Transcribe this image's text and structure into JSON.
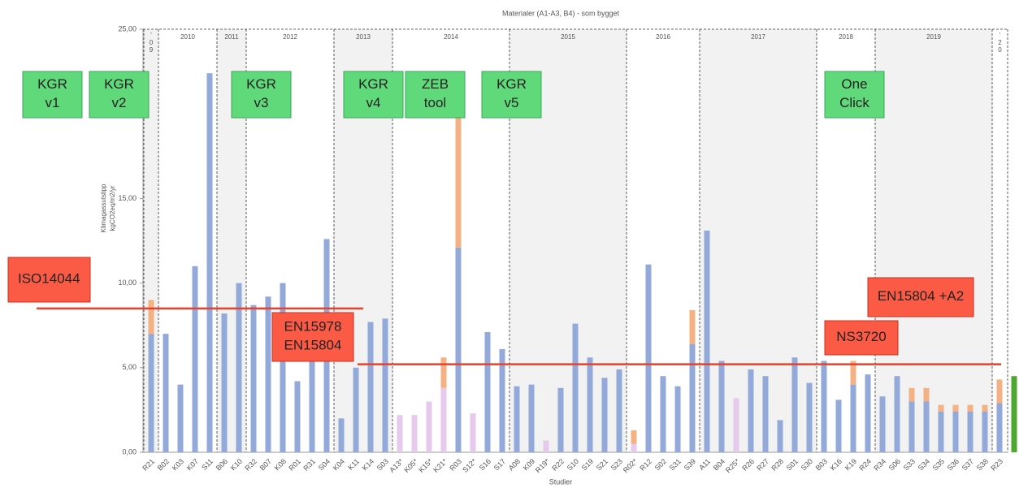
{
  "chart_data": {
    "type": "bar",
    "stacked": true,
    "title": "Materialer (A1-A3, B4) - som bygget",
    "ylabel": [
      "Klimagassutslipp",
      "kgCO2eq/m2/yr"
    ],
    "xlabel": "Studier",
    "ylim": [
      0,
      25
    ],
    "yticks": [
      {
        "value": 0,
        "label": "0,00"
      },
      {
        "value": 5,
        "label": "5,00"
      },
      {
        "value": 10,
        "label": "10,00"
      },
      {
        "value": 15,
        "label": "15,00"
      },
      {
        "value": 20,
        "label": "20,00"
      },
      {
        "value": 25,
        "label": "25,00"
      }
    ],
    "categories": [
      "R21",
      "B02",
      "K03",
      "K07",
      "S11",
      "B06",
      "K10",
      "R32",
      "B07",
      "K08",
      "R01",
      "R31",
      "S04",
      "K04",
      "K11",
      "K14",
      "S03",
      "A13*",
      "K05*",
      "K15*",
      "K21*",
      "R03",
      "S12*",
      "S16",
      "S17",
      "A08",
      "K09",
      "R19*",
      "R22",
      "S10",
      "S19",
      "S21",
      "S23",
      "R02*",
      "R12",
      "S02",
      "S31",
      "S39",
      "A11",
      "B04",
      "R25*",
      "R26",
      "R27",
      "R28",
      "S01",
      "S30",
      "B03",
      "K16",
      "K19",
      "R24",
      "R34",
      "S06",
      "S33",
      "S34",
      "S35",
      "S36",
      "S37",
      "S38",
      "R23",
      null
    ],
    "series": [
      {
        "color": "#92a9d9",
        "values": [
          7.0,
          7.0,
          4.0,
          11.0,
          22.4,
          8.2,
          10.0,
          8.7,
          9.2,
          10.0,
          4.2,
          5.5,
          12.6,
          2.0,
          5.0,
          7.7,
          7.9,
          null,
          null,
          null,
          null,
          12.1,
          null,
          7.1,
          6.1,
          3.9,
          4.0,
          null,
          3.8,
          7.6,
          5.6,
          4.4,
          4.9,
          null,
          11.1,
          4.5,
          3.9,
          6.4,
          13.1,
          5.4,
          null,
          4.9,
          4.5,
          1.9,
          5.6,
          4.1,
          5.4,
          3.1,
          4.0,
          4.6,
          3.3,
          4.5,
          3.0,
          3.0,
          2.4,
          2.4,
          2.4,
          2.4,
          2.9,
          null
        ]
      },
      {
        "color": "#e6c9ec",
        "values": [
          null,
          null,
          null,
          null,
          null,
          null,
          null,
          null,
          null,
          null,
          null,
          null,
          null,
          null,
          null,
          null,
          null,
          2.2,
          2.2,
          3.0,
          3.8,
          null,
          2.3,
          null,
          null,
          null,
          null,
          0.7,
          null,
          null,
          null,
          null,
          null,
          0.5,
          null,
          null,
          null,
          null,
          null,
          null,
          3.2,
          null,
          null,
          null,
          null,
          null,
          null,
          null,
          null,
          null,
          null,
          null,
          null,
          null,
          null,
          null,
          null,
          null,
          null,
          null
        ]
      },
      {
        "color": "#f4b183",
        "values": [
          2.0,
          null,
          null,
          null,
          null,
          null,
          null,
          null,
          null,
          null,
          null,
          null,
          null,
          null,
          null,
          null,
          null,
          null,
          null,
          null,
          1.8,
          7.7,
          null,
          null,
          null,
          null,
          null,
          null,
          null,
          null,
          null,
          null,
          null,
          0.8,
          null,
          null,
          null,
          2.0,
          null,
          null,
          null,
          null,
          null,
          null,
          null,
          null,
          null,
          null,
          1.4,
          null,
          null,
          null,
          0.8,
          0.8,
          0.4,
          0.4,
          0.4,
          0.4,
          1.4,
          null
        ]
      },
      {
        "color": "#4ea72e",
        "values": [
          null,
          null,
          null,
          null,
          null,
          null,
          null,
          null,
          null,
          null,
          null,
          null,
          null,
          null,
          null,
          null,
          null,
          null,
          null,
          null,
          null,
          null,
          null,
          null,
          null,
          null,
          null,
          null,
          null,
          null,
          null,
          null,
          null,
          null,
          null,
          null,
          null,
          null,
          null,
          null,
          null,
          null,
          null,
          null,
          null,
          null,
          null,
          null,
          null,
          null,
          null,
          null,
          null,
          null,
          null,
          null,
          null,
          null,
          null,
          4.5
        ]
      }
    ],
    "periods": [
      {
        "label": "'09",
        "count": 1
      },
      {
        "label": "2010",
        "count": 4
      },
      {
        "label": "2011",
        "count": 2
      },
      {
        "label": "2012",
        "count": 6
      },
      {
        "label": "2013",
        "count": 4
      },
      {
        "label": "2014",
        "count": 8
      },
      {
        "label": "2015",
        "count": 8
      },
      {
        "label": "2016",
        "count": 5
      },
      {
        "label": "2017",
        "count": 8
      },
      {
        "label": "2018",
        "count": 4
      },
      {
        "label": "2019",
        "count": 8
      },
      {
        "label": "'20",
        "count": 1
      }
    ],
    "tool_annotations": [
      [
        "KGR",
        "v1"
      ],
      [
        "KGR",
        "v2"
      ],
      [
        "KGR",
        "v3"
      ],
      [
        "KGR",
        "v4"
      ],
      [
        "ZEB",
        "tool"
      ],
      [
        "KGR",
        "v5"
      ],
      [
        "One",
        "Click"
      ]
    ],
    "standard_annotations": [
      [
        "ISO14044"
      ],
      [
        "EN15978",
        "EN15804"
      ],
      [
        "NS3720"
      ],
      [
        "EN15804 +A2"
      ]
    ],
    "reference_lines": [
      {
        "value": 8.5
      },
      {
        "value": 5.2
      }
    ]
  }
}
